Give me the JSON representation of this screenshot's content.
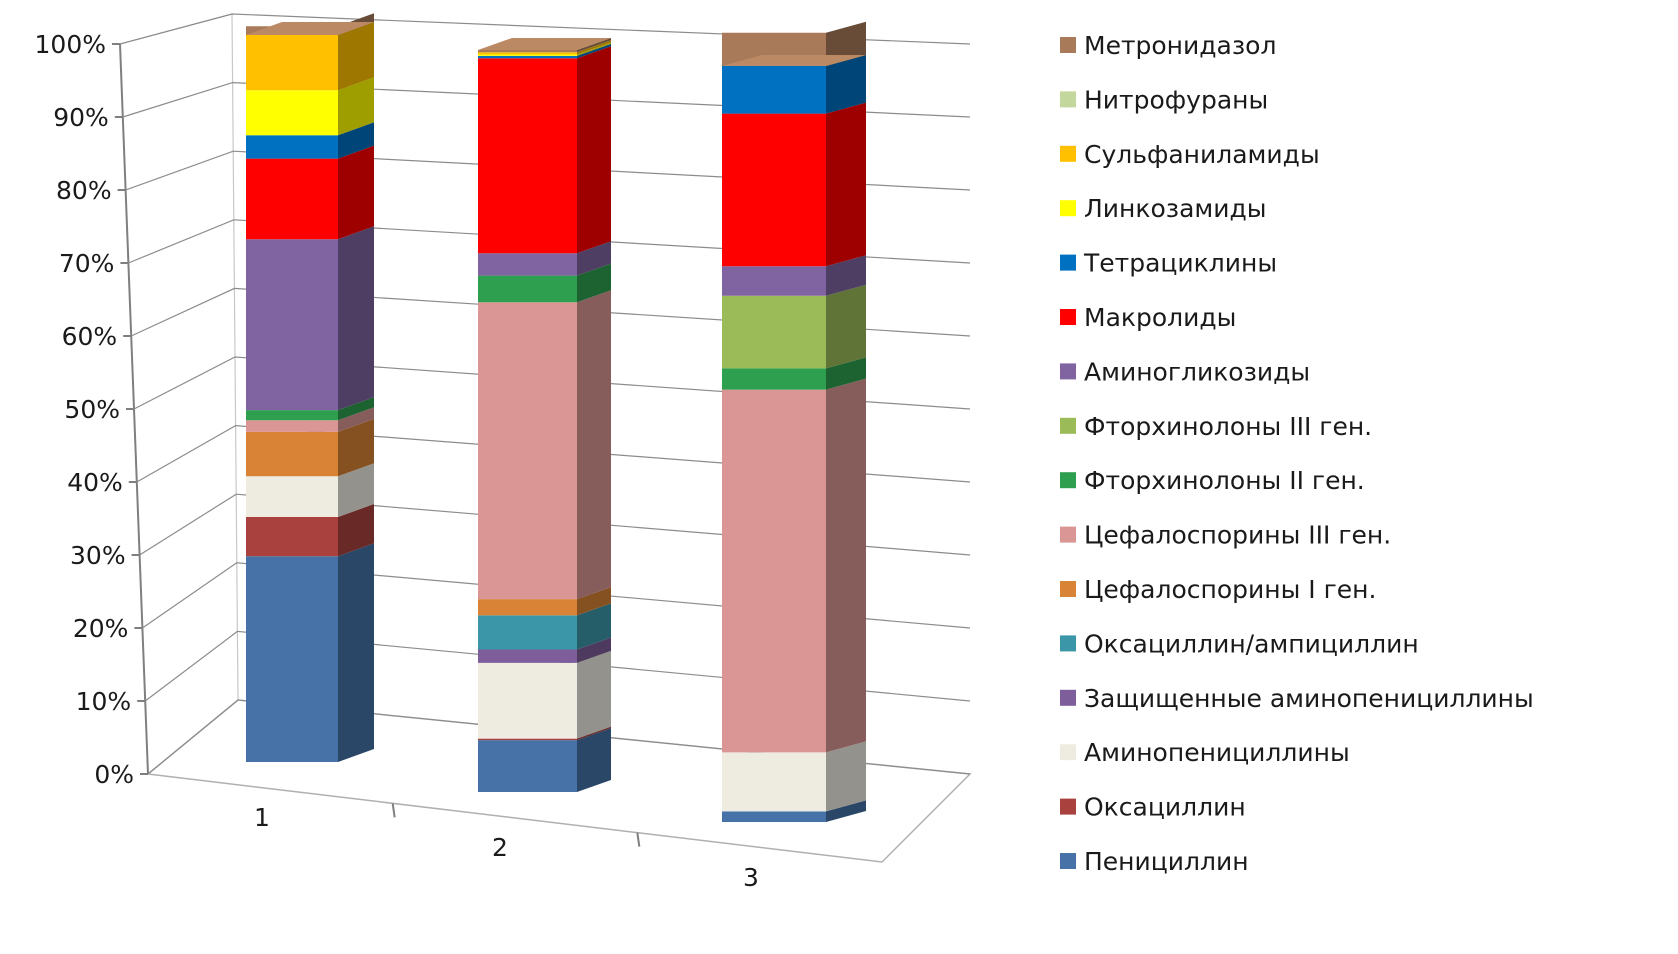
{
  "chart_data": {
    "type": "bar",
    "subtype": "stacked-100-3d",
    "categories": [
      "1",
      "2",
      "3"
    ],
    "ylim": [
      0,
      100
    ],
    "yticks": [
      "0%",
      "10%",
      "20%",
      "30%",
      "40%",
      "50%",
      "60%",
      "70%",
      "80%",
      "90%",
      "100%"
    ],
    "grid": true,
    "legend_position": "right",
    "series": [
      {
        "name": "Пенициллин",
        "color": "#4672A8",
        "values": [
          28.3,
          7.0,
          1.4
        ]
      },
      {
        "name": "Оксациллин",
        "color": "#A9423F",
        "values": [
          5.4,
          0.2,
          0.0
        ]
      },
      {
        "name": "Аминопенициллины",
        "color": "#EEECE1",
        "values": [
          5.6,
          10.2,
          7.8
        ]
      },
      {
        "name": "Защищенные аминопенициллины",
        "color": "#7D5E9A",
        "values": [
          0.0,
          1.8,
          0.0
        ]
      },
      {
        "name": "Оксациллин/ампициллин",
        "color": "#3B96A8",
        "values": [
          0.0,
          4.6,
          0.0
        ]
      },
      {
        "name": "Цефалоспорины I ген.",
        "color": "#D88335",
        "values": [
          6.1,
          2.2,
          0.0
        ]
      },
      {
        "name": "Цефалоспорины III ген.",
        "color": "#D99694",
        "values": [
          1.6,
          40.0,
          48.0
        ]
      },
      {
        "name": "Фторхинолоны II ген.",
        "color": "#2E9E4F",
        "values": [
          1.4,
          3.6,
          2.8
        ]
      },
      {
        "name": "Фторхинолоны III ген.",
        "color": "#9BBB59",
        "values": [
          0.0,
          0.0,
          9.6
        ]
      },
      {
        "name": "Аминогликозиды",
        "color": "#8064A2",
        "values": [
          23.5,
          3.0,
          3.9
        ]
      },
      {
        "name": "Макролиды",
        "color": "#FF0000",
        "values": [
          11.1,
          26.3,
          20.2
        ]
      },
      {
        "name": "Тетрациклины",
        "color": "#0070C0",
        "values": [
          3.2,
          0.3,
          10.1
        ]
      },
      {
        "name": "Линкозамиды",
        "color": "#FFFF00",
        "values": [
          6.2,
          0.2,
          0.0
        ]
      },
      {
        "name": "Сульфаниламиды",
        "color": "#FFC000",
        "values": [
          8.8,
          0.3,
          0.6
        ]
      },
      {
        "name": "Нитрофураны",
        "color": "#C3D69B",
        "values": [
          0.0,
          0.0,
          0.0
        ]
      },
      {
        "name": "Метронидазол",
        "color": "#A87A5A",
        "values": [
          2.2,
          0.5,
          0.6
        ]
      }
    ]
  }
}
